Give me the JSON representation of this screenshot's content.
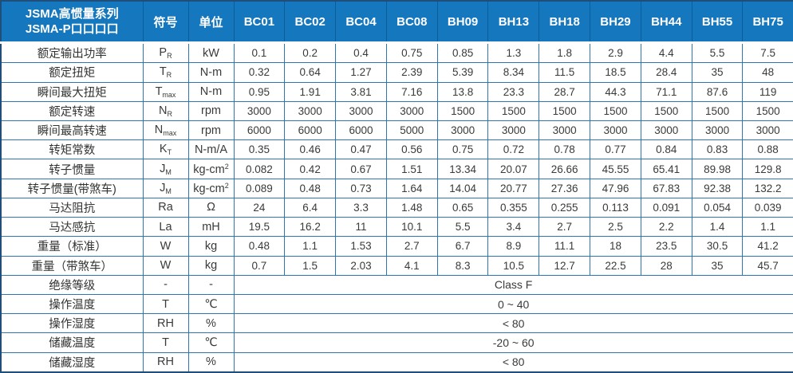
{
  "table": {
    "header": {
      "title_line1": "JSMA高惯量系列",
      "title_line2": "JSMA-P口口口口",
      "symbol_label": "符号",
      "unit_label": "单位",
      "models": [
        "BC01",
        "BC02",
        "BC04",
        "BC08",
        "BH09",
        "BH13",
        "BH18",
        "BH29",
        "BH44",
        "BH55",
        "BH75"
      ]
    },
    "rows": [
      {
        "label": "额定输出功率",
        "sym": "P",
        "sub": "R",
        "unit": "kW",
        "unit_sup": "",
        "values": [
          "0.1",
          "0.2",
          "0.4",
          "0.75",
          "0.85",
          "1.3",
          "1.8",
          "2.9",
          "4.4",
          "5.5",
          "7.5"
        ]
      },
      {
        "label": "额定扭矩",
        "sym": "T",
        "sub": "R",
        "unit": "N-m",
        "unit_sup": "",
        "values": [
          "0.32",
          "0.64",
          "1.27",
          "2.39",
          "5.39",
          "8.34",
          "11.5",
          "18.5",
          "28.4",
          "35",
          "48"
        ]
      },
      {
        "label": "瞬间最大扭矩",
        "sym": "T",
        "sub": "max",
        "unit": "N-m",
        "unit_sup": "",
        "values": [
          "0.95",
          "1.91",
          "3.81",
          "7.16",
          "13.8",
          "23.3",
          "28.7",
          "44.3",
          "71.1",
          "87.6",
          "119"
        ]
      },
      {
        "label": "额定转速",
        "sym": "N",
        "sub": "R",
        "unit": "rpm",
        "unit_sup": "",
        "values": [
          "3000",
          "3000",
          "3000",
          "3000",
          "1500",
          "1500",
          "1500",
          "1500",
          "1500",
          "1500",
          "1500"
        ]
      },
      {
        "label": "瞬间最高转速",
        "sym": "N",
        "sub": "max",
        "unit": "rpm",
        "unit_sup": "",
        "values": [
          "6000",
          "6000",
          "6000",
          "5000",
          "3000",
          "3000",
          "3000",
          "3000",
          "3000",
          "3000",
          "3000"
        ]
      },
      {
        "label": "转矩常数",
        "sym": "K",
        "sub": "T",
        "unit": "N-m/A",
        "unit_sup": "",
        "values": [
          "0.35",
          "0.46",
          "0.47",
          "0.56",
          "0.75",
          "0.72",
          "0.78",
          "0.77",
          "0.84",
          "0.83",
          "0.88"
        ]
      },
      {
        "label": "转子惯量",
        "sym": "J",
        "sub": "M",
        "unit": "kg-cm",
        "unit_sup": "2",
        "values": [
          "0.082",
          "0.42",
          "0.67",
          "1.51",
          "13.34",
          "20.07",
          "26.66",
          "45.55",
          "65.41",
          "89.98",
          "129.8"
        ]
      },
      {
        "label": "转子惯量(带煞车)",
        "sym": "J",
        "sub": "M",
        "unit": "kg-cm",
        "unit_sup": "2",
        "values": [
          "0.089",
          "0.48",
          "0.73",
          "1.64",
          "14.04",
          "20.77",
          "27.36",
          "47.96",
          "67.83",
          "92.38",
          "132.2"
        ]
      },
      {
        "label": "马达阻抗",
        "sym": "Ra",
        "sub": "",
        "unit": "Ω",
        "unit_sup": "",
        "values": [
          "24",
          "6.4",
          "3.3",
          "1.48",
          "0.65",
          "0.355",
          "0.255",
          "0.113",
          "0.091",
          "0.054",
          "0.039"
        ]
      },
      {
        "label": "马达感抗",
        "sym": "La",
        "sub": "",
        "unit": "mH",
        "unit_sup": "",
        "values": [
          "19.5",
          "16.2",
          "11",
          "10.1",
          "5.5",
          "3.4",
          "2.7",
          "2.5",
          "2.2",
          "1.4",
          "1.1"
        ]
      },
      {
        "label": "重量（标准）",
        "sym": "W",
        "sub": "",
        "unit": "kg",
        "unit_sup": "",
        "values": [
          "0.48",
          "1.1",
          "1.53",
          "2.7",
          "6.7",
          "8.9",
          "11.1",
          "18",
          "23.5",
          "30.5",
          "41.2"
        ]
      },
      {
        "label": "重量（带煞车）",
        "sym": "W",
        "sub": "",
        "unit": "kg",
        "unit_sup": "",
        "values": [
          "0.7",
          "1.5",
          "2.03",
          "4.1",
          "8.3",
          "10.5",
          "12.7",
          "22.5",
          "28",
          "35",
          "45.7"
        ]
      },
      {
        "label": "绝缘等级",
        "sym": "-",
        "sub": "",
        "unit": "-",
        "unit_sup": "",
        "merged": "Class F"
      },
      {
        "label": "操作温度",
        "sym": "T",
        "sub": "",
        "unit": "℃",
        "unit_sup": "",
        "merged": "0 ~ 40"
      },
      {
        "label": "操作湿度",
        "sym": "RH",
        "sub": "",
        "unit": "%",
        "unit_sup": "",
        "merged": "< 80"
      },
      {
        "label": "储藏温度",
        "sym": "T",
        "sub": "",
        "unit": "℃",
        "unit_sup": "",
        "merged": "-20 ~ 60"
      },
      {
        "label": "储藏湿度",
        "sym": "RH",
        "sub": "",
        "unit": "%",
        "unit_sup": "",
        "merged": "< 80"
      }
    ],
    "colors": {
      "header_bg": "#1577BE",
      "grid_border": "#2E75B6",
      "outer_border": "#1E4E79",
      "header_text": "#FFFFFF",
      "body_text": "#3A3A3A"
    }
  }
}
